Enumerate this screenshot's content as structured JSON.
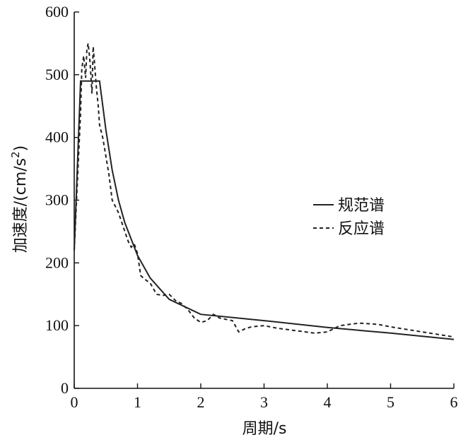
{
  "chart_data": {
    "type": "line",
    "xlabel": "周期/s",
    "ylabel_main": "加速度/(cm/s",
    "ylabel_sup": "2",
    "ylabel_close": ")",
    "xlim": [
      0,
      6
    ],
    "ylim": [
      0,
      600
    ],
    "x_ticks": [
      0,
      1,
      2,
      3,
      4,
      5,
      6
    ],
    "y_ticks": [
      0,
      100,
      200,
      300,
      400,
      500,
      600
    ],
    "legend_position": "right-middle",
    "grid": false,
    "series": [
      {
        "name": "规范谱",
        "style": "solid",
        "x": [
          0,
          0.1,
          0.2,
          0.3,
          0.4,
          0.5,
          0.6,
          0.7,
          0.8,
          1.0,
          1.2,
          1.5,
          2.0,
          3.0,
          4.0,
          5.0,
          6.0
        ],
        "y": [
          220,
          490,
          490,
          490,
          490,
          412,
          348,
          300,
          264,
          212,
          176,
          142,
          118,
          108,
          97,
          88,
          78
        ]
      },
      {
        "name": "反应谱",
        "style": "dashed",
        "x": [
          0,
          0.1,
          0.12,
          0.15,
          0.18,
          0.2,
          0.22,
          0.25,
          0.28,
          0.3,
          0.32,
          0.35,
          0.38,
          0.4,
          0.45,
          0.5,
          0.55,
          0.6,
          0.65,
          0.7,
          0.75,
          0.8,
          0.85,
          0.9,
          0.95,
          1.0,
          1.05,
          1.1,
          1.2,
          1.3,
          1.4,
          1.5,
          1.6,
          1.7,
          1.8,
          1.9,
          2.0,
          2.1,
          2.2,
          2.3,
          2.4,
          2.5,
          2.6,
          2.7,
          2.8,
          3.0,
          3.2,
          3.5,
          3.8,
          4.0,
          4.2,
          4.5,
          4.8,
          5.0,
          5.5,
          6.0
        ],
        "y": [
          220,
          440,
          510,
          530,
          495,
          540,
          550,
          520,
          470,
          545,
          520,
          480,
          450,
          420,
          400,
          370,
          340,
          300,
          290,
          280,
          265,
          250,
          235,
          225,
          230,
          215,
          180,
          175,
          168,
          150,
          148,
          150,
          140,
          135,
          125,
          112,
          105,
          108,
          118,
          112,
          110,
          108,
          90,
          95,
          98,
          100,
          96,
          92,
          88,
          90,
          100,
          104,
          102,
          98,
          90,
          82
        ]
      }
    ]
  }
}
